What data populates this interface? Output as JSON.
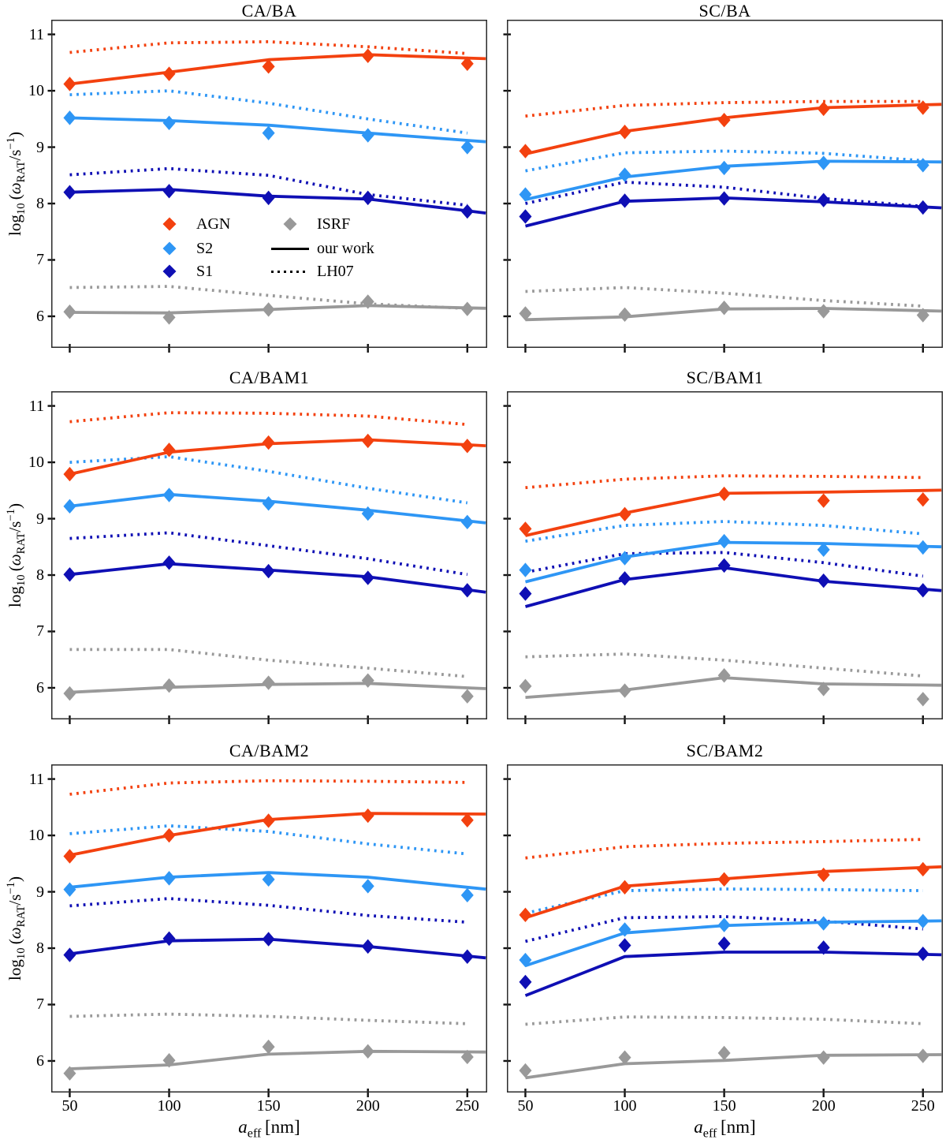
{
  "figure": {
    "ylabel_html": "log<sub>10</sub>&#8201;(<i>&#969;</i><sub>RAT</sub>/s<sup>&#8722;1</sup>)",
    "xlabel_html": "<i>a</i><sub>eff</sub>&#8201;[nm]",
    "ylabel_text": "log10 (omega_RAT/s^-1)",
    "xlabel_text": "a_eff [nm]",
    "y_ticks": [
      "6",
      "7",
      "8",
      "9",
      "10",
      "11"
    ],
    "x_ticks": [
      "50",
      "100",
      "150",
      "200",
      "250"
    ],
    "line_style_solid_label": "our work",
    "line_style_dotted_label": "LH07",
    "colors": {
      "AGN": "#F3410F",
      "S2": "#2E96F5",
      "S1": "#0F0FB4",
      "ISRF": "#999999",
      "axis": "#2b2b2b",
      "text": "#000000"
    },
    "legend": {
      "entries": [
        {
          "label": "AGN",
          "type": "marker",
          "color": "#F3410F"
        },
        {
          "label": "S2",
          "type": "marker",
          "color": "#2E96F5"
        },
        {
          "label": "S1",
          "type": "marker",
          "color": "#0F0FB4"
        },
        {
          "label": "ISRF",
          "type": "marker",
          "color": "#999999"
        },
        {
          "label": "our work",
          "type": "solid-line",
          "color": "#000000"
        },
        {
          "label": "LH07",
          "type": "dotted-line",
          "color": "#000000"
        }
      ]
    }
  },
  "chart_data": [
    {
      "type": "line",
      "title": "CA/BA",
      "x": [
        50,
        100,
        150,
        200,
        250
      ],
      "xlabel": "a_eff [nm]",
      "ylabel": "log10 (omega_RAT/s^-1)",
      "xlim": [
        40.7,
        260
      ],
      "ylim": [
        5.44,
        11.26
      ],
      "series": [
        {
          "name": "AGN",
          "color": "#F3410F",
          "marker": "diamond",
          "markers": [
            10.12,
            10.3,
            10.43,
            10.62,
            10.48
          ],
          "line": [
            10.12,
            10.33,
            10.55,
            10.64,
            10.58
          ],
          "dotted": [
            10.68,
            10.85,
            10.87,
            10.78,
            10.66
          ]
        },
        {
          "name": "S2",
          "color": "#2E96F5",
          "marker": "diamond",
          "markers": [
            9.52,
            9.43,
            9.25,
            9.21,
            9.0
          ],
          "line": [
            9.52,
            9.47,
            9.39,
            9.25,
            9.12
          ],
          "dotted": [
            9.93,
            10.0,
            9.78,
            9.5,
            9.25
          ]
        },
        {
          "name": "S1",
          "color": "#0F0FB4",
          "marker": "diamond",
          "markers": [
            8.2,
            8.22,
            8.1,
            8.1,
            7.86
          ],
          "line": [
            8.2,
            8.25,
            8.13,
            8.08,
            7.87
          ],
          "dotted": [
            8.51,
            8.62,
            8.5,
            8.16,
            7.97
          ]
        },
        {
          "name": "ISRF",
          "color": "#999999",
          "marker": "diamond",
          "markers": [
            6.08,
            5.98,
            6.12,
            6.26,
            6.13
          ],
          "line": [
            6.07,
            6.06,
            6.12,
            6.19,
            6.15
          ],
          "dotted": [
            6.51,
            6.53,
            6.37,
            6.22,
            6.14
          ]
        }
      ]
    },
    {
      "type": "line",
      "title": "SC/BA",
      "x": [
        50,
        100,
        150,
        200,
        250
      ],
      "xlabel": "a_eff [nm]",
      "ylabel": "log10 (omega_RAT/s^-1)",
      "xlim": [
        40.7,
        260
      ],
      "ylim": [
        5.44,
        11.26
      ],
      "series": [
        {
          "name": "AGN",
          "color": "#F3410F",
          "marker": "diamond",
          "markers": [
            8.93,
            9.27,
            9.48,
            9.68,
            9.7
          ],
          "line": [
            8.88,
            9.28,
            9.52,
            9.7,
            9.75
          ],
          "dotted": [
            9.55,
            9.74,
            9.79,
            9.81,
            9.81
          ]
        },
        {
          "name": "S2",
          "color": "#2E96F5",
          "marker": "diamond",
          "markers": [
            8.16,
            8.51,
            8.63,
            8.72,
            8.68
          ],
          "line": [
            8.07,
            8.47,
            8.66,
            8.75,
            8.74
          ],
          "dotted": [
            8.58,
            8.9,
            8.93,
            8.89,
            8.76
          ]
        },
        {
          "name": "S1",
          "color": "#0F0FB4",
          "marker": "diamond",
          "markers": [
            7.77,
            8.05,
            8.09,
            8.06,
            7.93
          ],
          "line": [
            7.6,
            8.04,
            8.1,
            8.03,
            7.94
          ],
          "dotted": [
            8.0,
            8.38,
            8.29,
            8.09,
            7.95
          ]
        },
        {
          "name": "ISRF",
          "color": "#999999",
          "marker": "diamond",
          "markers": [
            6.05,
            6.03,
            6.15,
            6.09,
            6.02
          ],
          "line": [
            5.94,
            5.99,
            6.13,
            6.14,
            6.1
          ],
          "dotted": [
            6.44,
            6.51,
            6.41,
            6.28,
            6.18
          ]
        }
      ]
    },
    {
      "type": "line",
      "title": "CA/BAM1",
      "x": [
        50,
        100,
        150,
        200,
        250
      ],
      "xlabel": "a_eff [nm]",
      "ylabel": "log10 (omega_RAT/s^-1)",
      "xlim": [
        40.7,
        260
      ],
      "ylim": [
        5.44,
        11.26
      ],
      "series": [
        {
          "name": "AGN",
          "color": "#F3410F",
          "marker": "diamond",
          "markers": [
            9.79,
            10.22,
            10.35,
            10.38,
            10.29
          ],
          "line": [
            9.79,
            10.18,
            10.33,
            10.4,
            10.31
          ],
          "dotted": [
            10.72,
            10.88,
            10.87,
            10.82,
            10.67
          ]
        },
        {
          "name": "S2",
          "color": "#2E96F5",
          "marker": "diamond",
          "markers": [
            9.22,
            9.42,
            9.27,
            9.09,
            8.94
          ],
          "line": [
            9.22,
            9.43,
            9.31,
            9.15,
            8.96
          ],
          "dotted": [
            10.0,
            10.1,
            9.84,
            9.54,
            9.28
          ]
        },
        {
          "name": "S1",
          "color": "#0F0FB4",
          "marker": "diamond",
          "markers": [
            8.01,
            8.22,
            8.07,
            7.95,
            7.73
          ],
          "line": [
            8.01,
            8.2,
            8.09,
            7.97,
            7.74
          ],
          "dotted": [
            8.65,
            8.75,
            8.52,
            8.29,
            8.01
          ]
        },
        {
          "name": "ISRF",
          "color": "#999999",
          "marker": "diamond",
          "markers": [
            5.9,
            6.04,
            6.09,
            6.13,
            5.85
          ],
          "line": [
            5.92,
            6.01,
            6.06,
            6.08,
            6.0
          ],
          "dotted": [
            6.68,
            6.68,
            6.49,
            6.35,
            6.2
          ]
        }
      ]
    },
    {
      "type": "line",
      "title": "SC/BAM1",
      "x": [
        50,
        100,
        150,
        200,
        250
      ],
      "xlabel": "a_eff [nm]",
      "ylabel": "log10 (omega_RAT/s^-1)",
      "xlim": [
        40.7,
        260
      ],
      "ylim": [
        5.44,
        11.26
      ],
      "series": [
        {
          "name": "AGN",
          "color": "#F3410F",
          "marker": "diamond",
          "markers": [
            8.82,
            9.08,
            9.44,
            9.32,
            9.34
          ],
          "line": [
            8.7,
            9.1,
            9.45,
            9.47,
            9.5
          ],
          "dotted": [
            9.55,
            9.7,
            9.76,
            9.75,
            9.73
          ]
        },
        {
          "name": "S2",
          "color": "#2E96F5",
          "marker": "diamond",
          "markers": [
            8.09,
            8.3,
            8.6,
            8.45,
            8.49
          ],
          "line": [
            7.88,
            8.32,
            8.58,
            8.56,
            8.51
          ],
          "dotted": [
            8.6,
            8.88,
            8.95,
            8.88,
            8.73
          ]
        },
        {
          "name": "S1",
          "color": "#0F0FB4",
          "marker": "diamond",
          "markers": [
            7.67,
            7.94,
            8.17,
            7.9,
            7.73
          ],
          "line": [
            7.44,
            7.92,
            8.13,
            7.89,
            7.75
          ],
          "dotted": [
            8.05,
            8.38,
            8.4,
            8.22,
            7.98
          ]
        },
        {
          "name": "ISRF",
          "color": "#999999",
          "marker": "diamond",
          "markers": [
            6.03,
            5.95,
            6.22,
            5.98,
            5.8
          ],
          "line": [
            5.83,
            5.96,
            6.18,
            6.07,
            6.05
          ],
          "dotted": [
            6.55,
            6.6,
            6.49,
            6.35,
            6.21
          ]
        }
      ]
    },
    {
      "type": "line",
      "title": "CA/BAM2",
      "x": [
        50,
        100,
        150,
        200,
        250
      ],
      "xlabel": "a_eff [nm]",
      "ylabel": "log10 (omega_RAT/s^-1)",
      "xlim": [
        40.7,
        260
      ],
      "ylim": [
        5.44,
        11.26
      ],
      "series": [
        {
          "name": "AGN",
          "color": "#F3410F",
          "marker": "diamond",
          "markers": [
            9.63,
            10.0,
            10.26,
            10.35,
            10.27
          ],
          "line": [
            9.65,
            10.0,
            10.28,
            10.39,
            10.38
          ],
          "dotted": [
            10.73,
            10.93,
            10.97,
            10.96,
            10.94
          ]
        },
        {
          "name": "S2",
          "color": "#2E96F5",
          "marker": "diamond",
          "markers": [
            9.04,
            9.24,
            9.22,
            9.1,
            8.94
          ],
          "line": [
            9.08,
            9.26,
            9.34,
            9.26,
            9.08
          ],
          "dotted": [
            10.03,
            10.17,
            10.07,
            9.85,
            9.67
          ]
        },
        {
          "name": "S1",
          "color": "#0F0FB4",
          "marker": "diamond",
          "markers": [
            7.88,
            8.17,
            8.16,
            8.03,
            7.85
          ],
          "line": [
            7.9,
            8.13,
            8.16,
            8.03,
            7.86
          ],
          "dotted": [
            8.75,
            8.88,
            8.76,
            8.58,
            8.46
          ]
        },
        {
          "name": "ISRF",
          "color": "#999999",
          "marker": "diamond",
          "markers": [
            5.78,
            6.01,
            6.25,
            6.17,
            6.07
          ],
          "line": [
            5.86,
            5.93,
            6.12,
            6.17,
            6.16
          ],
          "dotted": [
            6.79,
            6.83,
            6.79,
            6.72,
            6.66
          ]
        }
      ]
    },
    {
      "type": "line",
      "title": "SC/BAM2",
      "x": [
        50,
        100,
        150,
        200,
        250
      ],
      "xlabel": "a_eff [nm]",
      "ylabel": "log10 (omega_RAT/s^-1)",
      "xlim": [
        40.7,
        260
      ],
      "ylim": [
        5.44,
        11.26
      ],
      "series": [
        {
          "name": "AGN",
          "color": "#F3410F",
          "marker": "diamond",
          "markers": [
            8.59,
            9.08,
            9.22,
            9.3,
            9.4
          ],
          "line": [
            8.54,
            9.1,
            9.23,
            9.36,
            9.43
          ],
          "dotted": [
            9.6,
            9.8,
            9.86,
            9.89,
            9.93
          ]
        },
        {
          "name": "S2",
          "color": "#2E96F5",
          "marker": "diamond",
          "markers": [
            7.79,
            8.33,
            8.41,
            8.44,
            8.48
          ],
          "line": [
            7.69,
            8.27,
            8.4,
            8.46,
            8.48
          ],
          "dotted": [
            8.62,
            9.02,
            9.05,
            9.04,
            9.02
          ]
        },
        {
          "name": "S1",
          "color": "#0F0FB4",
          "marker": "diamond",
          "markers": [
            7.4,
            8.05,
            8.08,
            8.01,
            7.9
          ],
          "line": [
            7.16,
            7.85,
            7.93,
            7.93,
            7.89
          ],
          "dotted": [
            8.12,
            8.54,
            8.56,
            8.48,
            8.34
          ]
        },
        {
          "name": "ISRF",
          "color": "#999999",
          "marker": "diamond",
          "markers": [
            5.83,
            6.06,
            6.14,
            6.06,
            6.09
          ],
          "line": [
            5.7,
            5.95,
            6.01,
            6.1,
            6.11
          ],
          "dotted": [
            6.65,
            6.78,
            6.77,
            6.74,
            6.66
          ]
        }
      ]
    }
  ]
}
